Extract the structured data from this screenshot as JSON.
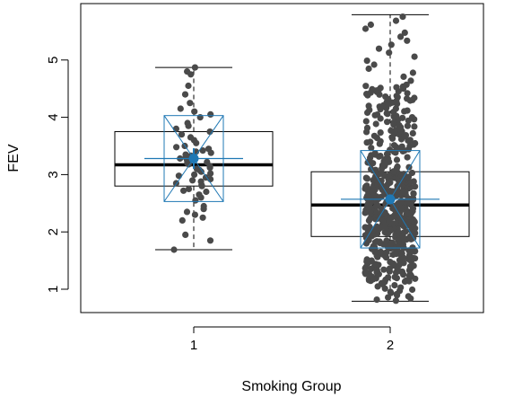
{
  "chart_data": {
    "type": "box",
    "title": "",
    "xlabel": "Smoking Group",
    "ylabel": "FEV",
    "categories": [
      "1",
      "2"
    ],
    "yticks": [
      1,
      2,
      3,
      4,
      5
    ],
    "ylim": [
      0.58,
      5.95
    ],
    "grid": false,
    "boxes": [
      {
        "category": "1",
        "min": 1.69,
        "q1": 2.8,
        "median": 3.17,
        "q3": 3.75,
        "max": 4.87,
        "mean": 3.28,
        "sd": 0.75,
        "mean_ci": [
          3.1,
          3.46
        ]
      },
      {
        "category": "2",
        "min": 0.79,
        "q1": 1.92,
        "median": 2.47,
        "q3": 3.05,
        "max": 5.79,
        "mean": 2.57,
        "sd": 0.85,
        "mean_ci": [
          2.5,
          2.64
        ]
      }
    ],
    "points": [
      {
        "category": "1",
        "values": [
          1.69,
          1.85,
          1.95,
          2.2,
          2.25,
          2.3,
          2.35,
          2.4,
          2.45,
          2.55,
          2.6,
          2.65,
          2.7,
          2.72,
          2.75,
          2.8,
          2.82,
          2.85,
          2.88,
          2.9,
          2.92,
          2.95,
          2.98,
          3.0,
          3.02,
          3.05,
          3.08,
          3.1,
          3.12,
          3.15,
          3.18,
          3.2,
          3.22,
          3.25,
          3.28,
          3.3,
          3.33,
          3.35,
          3.38,
          3.4,
          3.42,
          3.45,
          3.48,
          3.5,
          3.55,
          3.6,
          3.65,
          3.7,
          3.75,
          3.8,
          3.85,
          3.9,
          4.0,
          4.05,
          4.1,
          4.15,
          4.25,
          4.4,
          4.55,
          4.75,
          4.8,
          4.87
        ]
      },
      {
        "category": "2",
        "n": 589,
        "min": 0.79,
        "max": 5.79,
        "median": 2.47
      }
    ],
    "colors": {
      "points": "#4a4a4a",
      "box": "#000000",
      "median": "#000000",
      "mean_overlay": "#1f78b4"
    }
  }
}
